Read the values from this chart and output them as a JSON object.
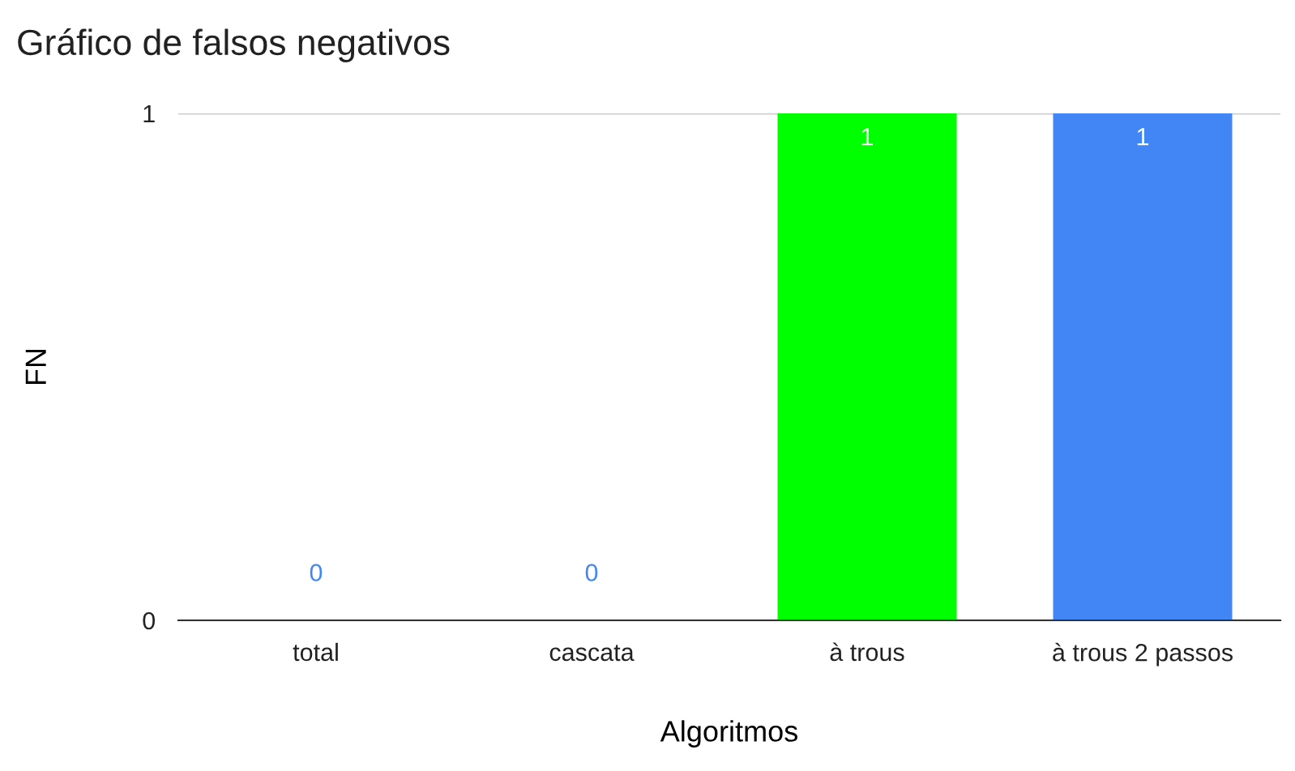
{
  "chart_data": {
    "type": "bar",
    "title": "Gráfico de falsos negativos",
    "xlabel": "Algoritmos",
    "ylabel": "FN",
    "categories": [
      "total",
      "cascata",
      "à trous",
      "à trous 2 passos"
    ],
    "values": [
      0,
      0,
      1,
      1
    ],
    "colors": [
      "#4285f4",
      "#4285f4",
      "#00ff00",
      "#4285f4"
    ],
    "ylim": [
      0,
      1
    ],
    "yticks": [
      0,
      1
    ],
    "grid": "y",
    "data_labels": true
  }
}
